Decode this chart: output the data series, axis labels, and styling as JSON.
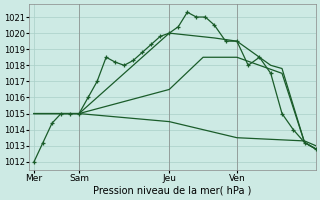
{
  "xlabel": "Pression niveau de la mer( hPa )",
  "background_color": "#cdeae4",
  "grid_color": "#aacfc8",
  "line_color": "#1a5c2a",
  "ylim": [
    1011.5,
    1021.8
  ],
  "yticks": [
    1012,
    1013,
    1014,
    1015,
    1016,
    1017,
    1018,
    1019,
    1020,
    1021
  ],
  "vline_positions": [
    2,
    6,
    9
  ],
  "xlim": [
    -0.2,
    12.5
  ],
  "xtick_positions": [
    0,
    2,
    6,
    9
  ],
  "xtick_labels": [
    "Mer",
    "Sam",
    "Jeu",
    "Ven"
  ],
  "series": [
    {
      "x": [
        0,
        0.4,
        0.8,
        1.2,
        1.6,
        2.0,
        2.4,
        2.8,
        3.2,
        3.6,
        4.0,
        4.4,
        4.8,
        5.2,
        5.6,
        6.0,
        6.4,
        6.8,
        7.2,
        7.6,
        8.0,
        8.5,
        9.0,
        9.5,
        10.0,
        10.5,
        11.0,
        11.5,
        12.0,
        12.5
      ],
      "y": [
        1012.0,
        1013.2,
        1014.4,
        1015.0,
        1015.0,
        1015.0,
        1016.0,
        1017.0,
        1018.5,
        1018.2,
        1018.0,
        1018.3,
        1018.8,
        1019.3,
        1019.8,
        1020.0,
        1020.4,
        1021.3,
        1021.0,
        1021.0,
        1020.5,
        1019.5,
        1019.5,
        1018.0,
        1018.5,
        1017.5,
        1015.0,
        1014.0,
        1013.2,
        1012.8
      ],
      "marker": true
    },
    {
      "x": [
        0,
        2.0,
        6.0,
        8.0,
        9.0,
        10.5,
        11.0,
        12.0,
        12.5
      ],
      "y": [
        1015.0,
        1015.0,
        1020.0,
        1019.7,
        1019.5,
        1018.0,
        1017.8,
        1013.2,
        1012.8
      ],
      "marker": false
    },
    {
      "x": [
        0,
        2.0,
        6.0,
        7.5,
        8.5,
        9.0,
        10.0,
        11.0,
        12.0,
        12.5
      ],
      "y": [
        1015.0,
        1015.0,
        1016.5,
        1018.5,
        1018.5,
        1018.5,
        1018.0,
        1017.5,
        1013.2,
        1012.8
      ],
      "marker": false
    },
    {
      "x": [
        0,
        2.0,
        6.0,
        9.0,
        12.0,
        12.5
      ],
      "y": [
        1015.0,
        1015.0,
        1014.5,
        1013.5,
        1013.3,
        1013.0
      ],
      "marker": false
    }
  ]
}
